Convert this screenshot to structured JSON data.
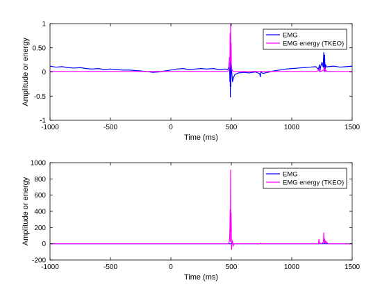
{
  "chart_data": [
    {
      "type": "line",
      "xlabel": "Time (ms)",
      "ylabel": "Amplitude or energy",
      "xlim": [
        -1000,
        1500
      ],
      "ylim": [
        -1,
        1
      ],
      "xticks": [
        -1000,
        -500,
        0,
        500,
        1000,
        1500
      ],
      "xtick_labels": [
        "-1000",
        "-500",
        "0",
        "500",
        "1000",
        "1500"
      ],
      "yticks": [
        -1,
        -0.5,
        0,
        0.5,
        1
      ],
      "ytick_labels": [
        "-1",
        "-0.5",
        "0",
        "0.50",
        "1"
      ],
      "legend_position": "top-right",
      "series": [
        {
          "name": "EMG",
          "color": "#0000ff",
          "x": [
            -1000,
            -950,
            -900,
            -850,
            -800,
            -750,
            -700,
            -650,
            -600,
            -550,
            -500,
            -450,
            -400,
            -350,
            -300,
            -250,
            -200,
            -150,
            -100,
            -50,
            0,
            50,
            100,
            150,
            200,
            250,
            300,
            350,
            400,
            450,
            470,
            480,
            485,
            488,
            490,
            492,
            494,
            496,
            498,
            500,
            505,
            510,
            520,
            530,
            560,
            600,
            650,
            700,
            720,
            735,
            740,
            745,
            760,
            800,
            850,
            900,
            950,
            1000,
            1050,
            1100,
            1150,
            1200,
            1220,
            1230,
            1232,
            1236,
            1240,
            1250,
            1260,
            1265,
            1268,
            1272,
            1276,
            1280,
            1285,
            1290,
            1300,
            1350,
            1400,
            1450,
            1500
          ],
          "y": [
            0.12,
            0.1,
            0.11,
            0.09,
            0.08,
            0.09,
            0.07,
            0.06,
            0.07,
            0.05,
            0.06,
            0.05,
            0.04,
            0.04,
            0.03,
            0.02,
            0.01,
            -0.01,
            0.0,
            0.02,
            0.04,
            0.06,
            0.07,
            0.05,
            0.06,
            0.07,
            0.06,
            0.07,
            0.05,
            0.06,
            0.05,
            0.1,
            0.3,
            -0.2,
            0.5,
            -0.52,
            0.75,
            -0.3,
            0.4,
            0.1,
            -0.05,
            -0.2,
            -0.1,
            -0.05,
            -0.02,
            -0.01,
            -0.02,
            0.0,
            -0.02,
            -0.04,
            -0.1,
            0.0,
            -0.03,
            -0.01,
            0.02,
            0.04,
            0.06,
            0.07,
            0.08,
            0.09,
            0.1,
            0.11,
            0.05,
            0.15,
            0.0,
            0.05,
            0.12,
            0.2,
            0.1,
            0.4,
            0.0,
            0.35,
            0.05,
            0.15,
            0.12,
            0.1,
            0.11,
            0.12,
            0.1,
            0.11,
            0.12
          ]
        },
        {
          "name": "EMG energy (TKEO)",
          "color": "#ff00ff",
          "x": [
            -1000,
            470,
            482,
            485,
            488,
            490,
            492,
            494,
            496,
            498,
            500,
            505,
            510,
            520,
            1200,
            1225,
            1230,
            1235,
            1250,
            1265,
            1268,
            1272,
            1276,
            1280,
            1285,
            1290,
            1300,
            1500
          ],
          "y": [
            0.01,
            0.01,
            0.05,
            0.3,
            0.1,
            0.8,
            0.2,
            1.0,
            0.4,
            0.6,
            0.15,
            0.05,
            0.02,
            0.01,
            0.01,
            0.03,
            0.08,
            0.01,
            0.02,
            0.04,
            0.1,
            0.02,
            0.06,
            0.01,
            0.03,
            0.01,
            0.01,
            0.01
          ]
        }
      ]
    },
    {
      "type": "line",
      "xlabel": "Time (ms)",
      "ylabel": "Amplitude or energy",
      "xlim": [
        -1000,
        1500
      ],
      "ylim": [
        -200,
        1000
      ],
      "xticks": [
        -1000,
        -500,
        0,
        500,
        1000,
        1500
      ],
      "xtick_labels": [
        "-1000",
        "-500",
        "0",
        "500",
        "1000",
        "1500"
      ],
      "yticks": [
        -200,
        0,
        200,
        400,
        600,
        800,
        1000
      ],
      "ytick_labels": [
        "-200",
        "0",
        "200",
        "400",
        "600",
        "800",
        "1000"
      ],
      "legend_position": "top-right",
      "series": [
        {
          "name": "EMG",
          "color": "#0000ff",
          "x": [
            -1000,
            480,
            485,
            490,
            495,
            500,
            1500
          ],
          "y": [
            0,
            0,
            1,
            -1,
            1,
            0,
            0
          ]
        },
        {
          "name": "EMG energy (TKEO)",
          "color": "#ff00ff",
          "x": [
            -1000,
            470,
            480,
            485,
            488,
            490,
            492,
            494,
            496,
            498,
            500,
            502,
            505,
            510,
            515,
            520,
            740,
            745,
            750,
            1220,
            1225,
            1230,
            1235,
            1250,
            1262,
            1265,
            1268,
            1272,
            1276,
            1280,
            1285,
            1290,
            1300,
            1500
          ],
          "y": [
            0,
            0,
            5,
            50,
            200,
            420,
            30,
            910,
            150,
            380,
            200,
            -70,
            20,
            40,
            -30,
            0,
            0,
            8,
            0,
            0,
            55,
            0,
            10,
            0,
            25,
            135,
            10,
            60,
            5,
            35,
            15,
            20,
            0,
            0
          ]
        }
      ]
    }
  ]
}
